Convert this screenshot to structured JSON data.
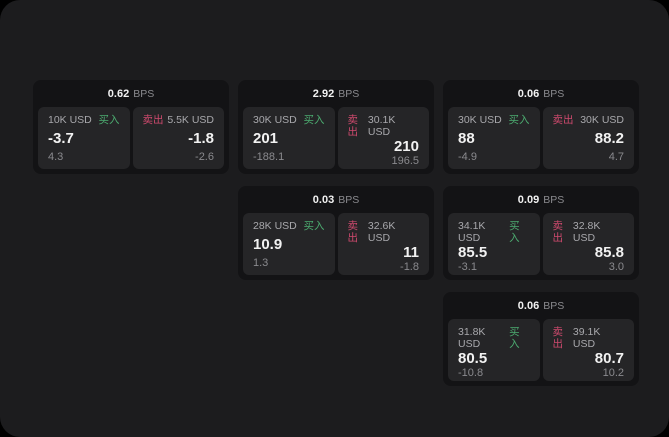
{
  "theme": {
    "bg_outer": "#000000",
    "bg_window": "#1c1c1e",
    "card_bg": "#131315",
    "panel_bg": "#252527",
    "buy_color": "#4cab70",
    "sell_color": "#cf4a6e",
    "text_primary": "#f2f2f2",
    "text_secondary": "#a8a8ac",
    "text_muted": "#8a8a8e"
  },
  "labels": {
    "bps": "BPS",
    "buy": "买入",
    "sell": "卖出"
  },
  "cards": [
    {
      "bps": "0.62",
      "buy": {
        "size": "10K USD",
        "price": "-3.7",
        "delta": "4.3"
      },
      "sell": {
        "size": "5.5K USD",
        "price": "-1.8",
        "delta": "-2.6"
      }
    },
    {
      "bps": "2.92",
      "buy": {
        "size": "30K USD",
        "price": "201",
        "delta": "-188.1"
      },
      "sell": {
        "size": "30.1K USD",
        "price": "210",
        "delta": "196.5"
      }
    },
    {
      "bps": "0.06",
      "buy": {
        "size": "30K USD",
        "price": "88",
        "delta": "-4.9"
      },
      "sell": {
        "size": "30K USD",
        "price": "88.2",
        "delta": "4.7"
      }
    },
    {
      "bps": "0.03",
      "buy": {
        "size": "28K USD",
        "price": "10.9",
        "delta": "1.3"
      },
      "sell": {
        "size": "32.6K USD",
        "price": "11",
        "delta": "-1.8"
      }
    },
    {
      "bps": "0.09",
      "buy": {
        "size": "34.1K USD",
        "price": "85.5",
        "delta": "-3.1"
      },
      "sell": {
        "size": "32.8K USD",
        "price": "85.8",
        "delta": "3.0"
      }
    },
    {
      "bps": "0.06",
      "buy": {
        "size": "31.8K USD",
        "price": "80.5",
        "delta": "-10.8"
      },
      "sell": {
        "size": "39.1K USD",
        "price": "80.7",
        "delta": "10.2"
      }
    }
  ]
}
